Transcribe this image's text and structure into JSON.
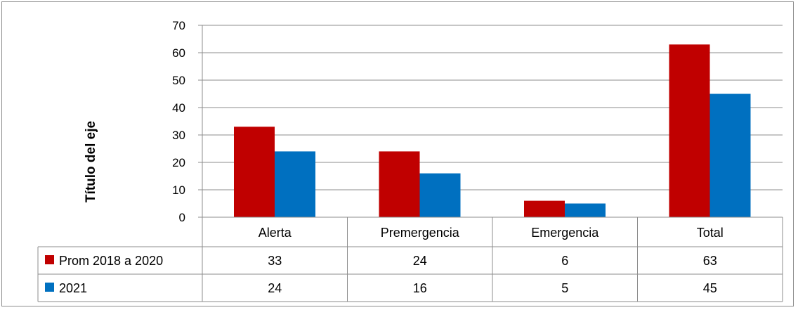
{
  "chart_data": {
    "type": "bar",
    "title": "",
    "xlabel": "",
    "ylabel": "Título del eje",
    "categories": [
      "Alerta",
      "Premergencia",
      "Emergencia",
      "Total"
    ],
    "series": [
      {
        "name": "Prom 2018 a 2020",
        "values": [
          33,
          24,
          6,
          63
        ],
        "color": "#C00000"
      },
      {
        "name": "2021",
        "values": [
          24,
          16,
          5,
          45
        ],
        "color": "#0070C0"
      }
    ],
    "ylim": [
      0,
      70
    ],
    "yticks": [
      "0",
      "10",
      "20",
      "30",
      "40",
      "50",
      "60",
      "70"
    ],
    "grid": true,
    "legend": "data-table",
    "table_rows": [
      [
        "33",
        "24",
        "6",
        "63"
      ],
      [
        "24",
        "16",
        "5",
        "45"
      ]
    ]
  }
}
